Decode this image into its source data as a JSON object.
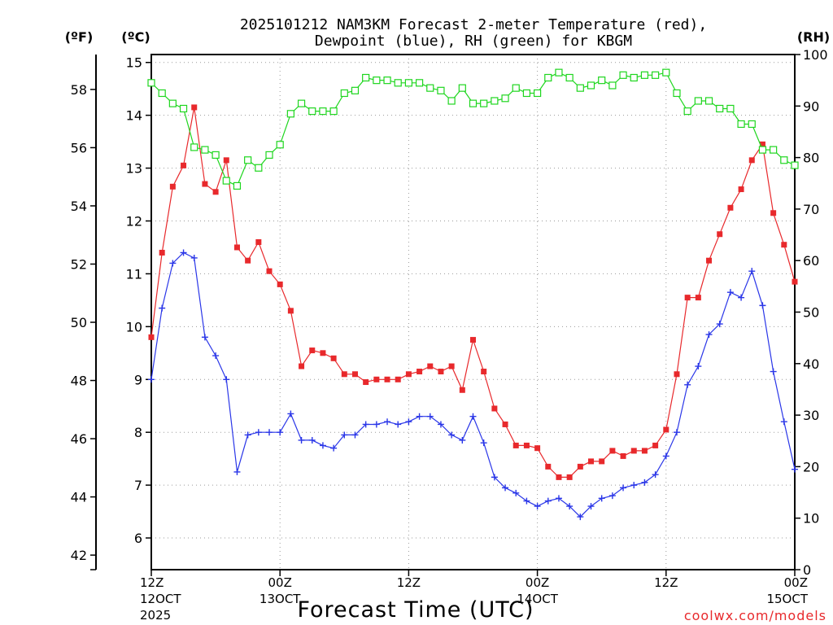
{
  "chart_data": {
    "type": "line",
    "title_line1": "2025101212 NAM3KM Forecast 2-meter Temperature (red),",
    "title_line2": "Dewpoint (blue), RH (green) for KBGM",
    "xlabel": "Forecast Time (UTC)",
    "credit": "coolwx.com/models",
    "colors": {
      "temperature": "#e8292c",
      "dewpoint": "#2a36e8",
      "rh": "#1ed61e"
    },
    "x_hours": {
      "start": 0,
      "end": 60,
      "step": 1
    },
    "x_ticks": [
      {
        "hour": 0,
        "line1": "12Z",
        "line2": "12OCT",
        "line3": "2025"
      },
      {
        "hour": 12,
        "line1": "00Z",
        "line2": "13OCT",
        "line3": ""
      },
      {
        "hour": 24,
        "line1": "12Z",
        "line2": "",
        "line3": ""
      },
      {
        "hour": 36,
        "line1": "00Z",
        "line2": "14OCT",
        "line3": ""
      },
      {
        "hour": 48,
        "line1": "12Z",
        "line2": "",
        "line3": ""
      },
      {
        "hour": 60,
        "line1": "00Z",
        "line2": "15OCT",
        "line3": ""
      }
    ],
    "axes": {
      "fahrenheit": {
        "label": "(ºF)",
        "range": [
          41.5,
          59.2
        ],
        "ticks": [
          42,
          44,
          46,
          48,
          50,
          52,
          54,
          56,
          58
        ]
      },
      "celsius": {
        "label": "(ºC)",
        "range": [
          5.4,
          15.15
        ],
        "ticks": [
          6,
          7,
          8,
          9,
          10,
          11,
          12,
          13,
          14,
          15
        ]
      },
      "rh": {
        "label": "(RH)",
        "range": [
          0,
          100
        ],
        "ticks": [
          0,
          10,
          20,
          30,
          40,
          50,
          60,
          70,
          80,
          90,
          100
        ]
      }
    },
    "series": [
      {
        "name": "Temperature",
        "units": "C",
        "values": [
          9.8,
          11.4,
          12.65,
          13.05,
          14.15,
          12.7,
          12.55,
          13.15,
          11.5,
          11.25,
          11.6,
          11.05,
          10.8,
          10.3,
          9.25,
          9.55,
          9.5,
          9.4,
          9.1,
          9.1,
          8.95,
          9.0,
          9.0,
          9.0,
          9.1,
          9.15,
          9.25,
          9.15,
          9.25,
          8.8,
          9.75,
          9.15,
          8.45,
          8.15,
          7.75,
          7.75,
          7.7,
          7.35,
          7.15,
          7.15,
          7.35,
          7.45,
          7.45,
          7.65,
          7.55,
          7.65,
          7.65,
          7.75,
          8.05,
          9.1,
          10.55,
          10.55,
          11.25,
          11.75,
          12.25,
          12.6,
          13.15,
          13.45,
          12.15,
          11.55,
          10.85
        ]
      },
      {
        "name": "Dewpoint",
        "units": "C",
        "values": [
          9.0,
          10.35,
          11.2,
          11.4,
          11.3,
          9.8,
          9.45,
          9.0,
          7.25,
          7.95,
          8.0,
          8.0,
          8.0,
          8.35,
          7.85,
          7.85,
          7.75,
          7.7,
          7.95,
          7.95,
          8.15,
          8.15,
          8.2,
          8.15,
          8.2,
          8.3,
          8.3,
          8.15,
          7.95,
          7.85,
          8.3,
          7.8,
          7.15,
          6.95,
          6.85,
          6.7,
          6.6,
          6.7,
          6.75,
          6.6,
          6.4,
          6.6,
          6.75,
          6.8,
          6.95,
          7.0,
          7.05,
          7.2,
          7.55,
          8.0,
          8.9,
          9.25,
          9.85,
          10.05,
          10.65,
          10.55,
          11.05,
          10.4,
          9.15,
          8.2,
          7.3
        ]
      },
      {
        "name": "RH",
        "units": "%",
        "values": [
          94.5,
          92.5,
          90.5,
          89.5,
          82.0,
          81.5,
          80.5,
          75.5,
          74.5,
          79.5,
          78.0,
          80.5,
          82.5,
          88.5,
          90.5,
          89.0,
          89.0,
          89.0,
          92.5,
          93.0,
          95.5,
          95.0,
          95.0,
          94.5,
          94.5,
          94.5,
          93.5,
          93.0,
          91.0,
          93.5,
          90.5,
          90.5,
          91.0,
          91.5,
          93.5,
          92.5,
          92.5,
          95.5,
          96.5,
          95.5,
          93.5,
          94.0,
          95.0,
          94.0,
          96.0,
          95.5,
          96.0,
          96.0,
          96.5,
          92.5,
          89.0,
          91.0,
          91.0,
          89.5,
          89.5,
          86.5,
          86.5,
          81.5,
          81.5,
          79.5,
          78.5
        ]
      }
    ]
  }
}
